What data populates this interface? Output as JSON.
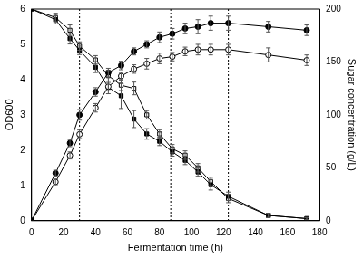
{
  "chart_data": {
    "type": "line",
    "x_label": "Fermentation time (h)",
    "y_label": "OD600",
    "y2_label": "Sugar concentration (g/L)",
    "x": [
      0,
      15,
      24,
      30,
      40,
      48,
      56,
      64,
      72,
      80,
      88,
      96,
      104,
      112,
      123,
      148,
      172
    ],
    "xlim": [
      0,
      180
    ],
    "xticks": [
      0,
      20,
      40,
      60,
      80,
      100,
      120,
      140,
      160,
      180
    ],
    "ylim": [
      0,
      6
    ],
    "yticks": [
      0,
      1,
      2,
      3,
      4,
      5,
      6
    ],
    "y2lim": [
      0,
      200
    ],
    "y2ticks": [
      0,
      50,
      100,
      150,
      200
    ],
    "grid": false,
    "vlines": [
      30,
      87,
      123
    ],
    "series": [
      {
        "color": "#000000",
        "marker": "circle",
        "line_style": "solid",
        "values": [
          0,
          1.35,
          2.2,
          3.0,
          3.65,
          4.2,
          4.4,
          4.8,
          5.0,
          5.2,
          5.3,
          5.45,
          5.5,
          5.6,
          5.6,
          5.5,
          5.4
        ],
        "errors": [
          0,
          0.08,
          0.1,
          0.15,
          0.12,
          0.12,
          0.12,
          0.1,
          0.1,
          0.15,
          0.15,
          0.15,
          0.2,
          0.2,
          0.2,
          0.15,
          0.15
        ]
      },
      {
        "color": "#000000",
        "marker": "circle-open",
        "line_style": "solid",
        "values": [
          0,
          1.1,
          1.85,
          2.45,
          3.2,
          3.8,
          4.1,
          4.3,
          4.45,
          4.6,
          4.65,
          4.8,
          4.85,
          4.85,
          4.85,
          4.7,
          4.55
        ],
        "errors": [
          0,
          0.08,
          0.1,
          0.12,
          0.12,
          0.12,
          0.1,
          0.12,
          0.15,
          0.15,
          0.12,
          0.12,
          0.15,
          0.15,
          0.15,
          0.2,
          0.15
        ]
      },
      {
        "color": "#000000",
        "marker": "square",
        "line_style": "solid",
        "axis": "y2",
        "values": [
          200,
          190,
          172,
          161,
          145,
          126,
          118,
          96,
          82,
          75,
          65,
          57,
          46,
          34,
          23,
          5,
          2
        ],
        "errors": [
          0,
          4,
          5,
          4,
          5,
          6,
          12,
          8,
          5,
          4,
          4,
          4,
          4,
          5,
          4,
          2,
          1
        ]
      },
      {
        "color": "#000000",
        "marker": "square-open",
        "line_style": "solid",
        "axis": "y2",
        "values": [
          200,
          192,
          180,
          165,
          152,
          137,
          128,
          125,
          100,
          82,
          68,
          62,
          50,
          37,
          21,
          5,
          2
        ],
        "errors": [
          0,
          4,
          5,
          4,
          4,
          5,
          5,
          6,
          4,
          4,
          4,
          4,
          4,
          4,
          4,
          2,
          1
        ]
      }
    ]
  }
}
